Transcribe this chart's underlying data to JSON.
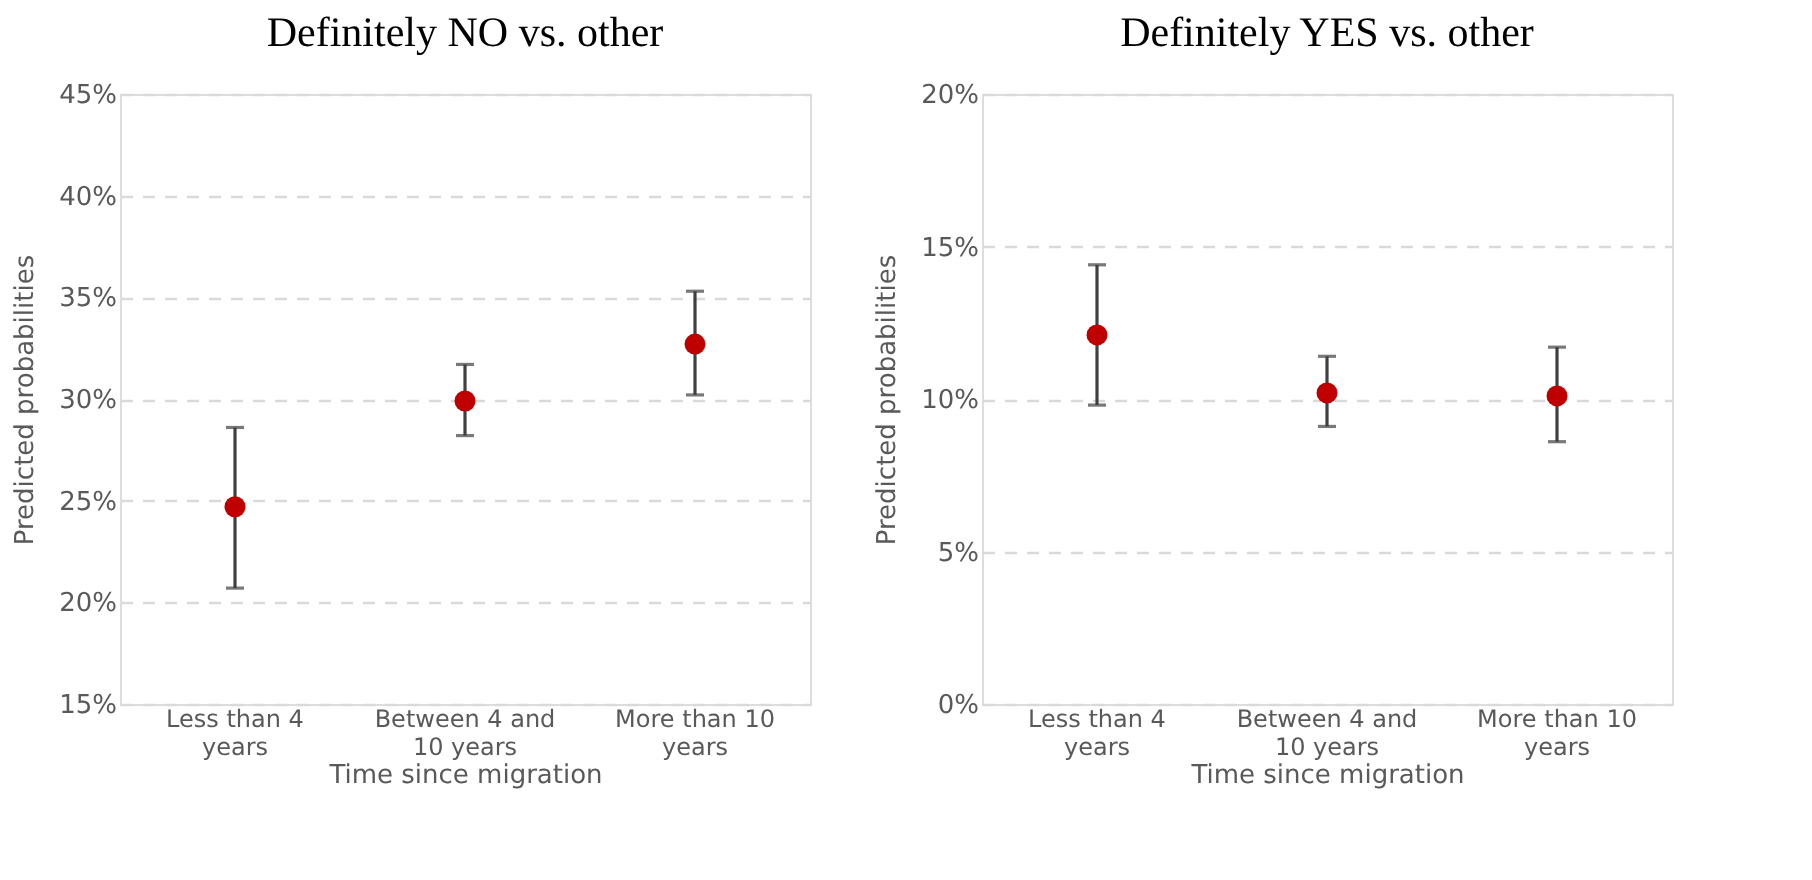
{
  "chart_data": [
    {
      "type": "scatter",
      "title": "Definitely NO vs. other",
      "xlabel": "Time since migration",
      "ylabel": "Predicted probabilities",
      "categories": [
        "Less than 4 years",
        "Between 4 and 10 years",
        "More than 10 years"
      ],
      "series": [
        {
          "color": "#c00000",
          "values": [
            24.7,
            29.9,
            32.7
          ],
          "errors": [
            [
              20.7,
              28.6
            ],
            [
              28.2,
              31.7
            ],
            [
              30.2,
              35.3
            ]
          ]
        }
      ],
      "ylim": [
        15,
        45
      ],
      "yticks": [
        {
          "value": 15,
          "label": "15%"
        },
        {
          "value": 20,
          "label": "20%"
        },
        {
          "value": 25,
          "label": "25%"
        },
        {
          "value": 30,
          "label": "30%"
        },
        {
          "value": 35,
          "label": "35%"
        },
        {
          "value": 40,
          "label": "40%"
        },
        {
          "value": 45,
          "label": "45%"
        }
      ],
      "grid": "y",
      "marker": "circle"
    },
    {
      "type": "scatter",
      "title": "Definitely YES vs. other",
      "xlabel": "Time since migration",
      "ylabel": "Predicted probabilities",
      "categories": [
        "Less than 4 years",
        "Between 4 and 10 years",
        "More than 10 years"
      ],
      "series": [
        {
          "color": "#c00000",
          "values": [
            12.1,
            10.2,
            10.1
          ],
          "errors": [
            [
              9.8,
              14.4
            ],
            [
              9.1,
              11.4
            ],
            [
              8.6,
              11.7
            ]
          ]
        }
      ],
      "ylim": [
        0,
        20
      ],
      "yticks": [
        {
          "value": 0,
          "label": "0%"
        },
        {
          "value": 5,
          "label": "5%"
        },
        {
          "value": 10,
          "label": "10%"
        },
        {
          "value": 15,
          "label": "15%"
        },
        {
          "value": 20,
          "label": "20%"
        }
      ],
      "grid": "y",
      "marker": "circle"
    }
  ]
}
